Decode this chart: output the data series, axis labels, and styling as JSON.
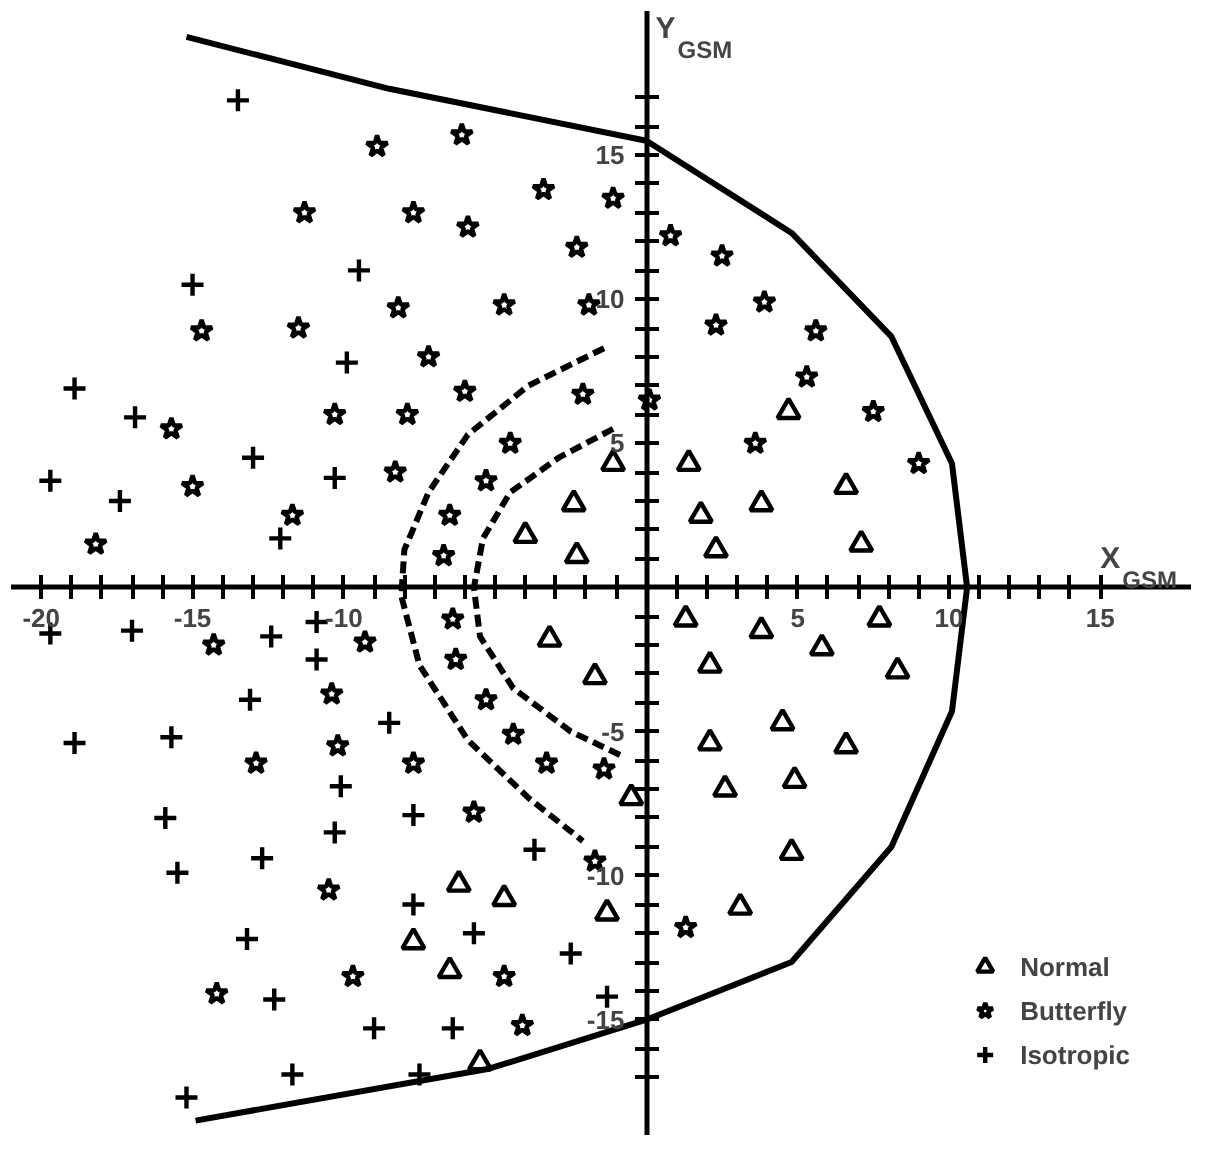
{
  "chart_data": {
    "type": "scatter",
    "xlabel": "X$_{GSM}$",
    "ylabel": "Y$_{GSM}$",
    "xlim": [
      -21,
      18
    ],
    "ylim": [
      -19,
      20
    ],
    "xticks": [
      {
        "value": -20,
        "label": "-20"
      },
      {
        "value": -19,
        "label": null
      },
      {
        "value": -18,
        "label": null
      },
      {
        "value": -17,
        "label": null
      },
      {
        "value": -16,
        "label": null
      },
      {
        "value": -15,
        "label": "-15"
      },
      {
        "value": -14,
        "label": null
      },
      {
        "value": -13,
        "label": null
      },
      {
        "value": -12,
        "label": null
      },
      {
        "value": -11,
        "label": null
      },
      {
        "value": -10,
        "label": "-10"
      },
      {
        "value": -9,
        "label": null
      },
      {
        "value": -8,
        "label": null
      },
      {
        "value": -7,
        "label": null
      },
      {
        "value": -6,
        "label": null
      },
      {
        "value": -5,
        "label": null
      },
      {
        "value": -4,
        "label": null
      },
      {
        "value": -3,
        "label": null
      },
      {
        "value": -2,
        "label": null
      },
      {
        "value": -1,
        "label": null
      },
      {
        "value": 1,
        "label": null
      },
      {
        "value": 2,
        "label": null
      },
      {
        "value": 3,
        "label": null
      },
      {
        "value": 4,
        "label": null
      },
      {
        "value": 5,
        "label": "5"
      },
      {
        "value": 6,
        "label": null
      },
      {
        "value": 7,
        "label": null
      },
      {
        "value": 8,
        "label": null
      },
      {
        "value": 9,
        "label": null
      },
      {
        "value": 10,
        "label": "10"
      },
      {
        "value": 11,
        "label": null
      },
      {
        "value": 12,
        "label": null
      },
      {
        "value": 13,
        "label": null
      },
      {
        "value": 14,
        "label": null
      },
      {
        "value": 15,
        "label": "15"
      }
    ],
    "yticks": [
      {
        "value": -17,
        "label": null
      },
      {
        "value": -16,
        "label": null
      },
      {
        "value": -15,
        "label": "-15"
      },
      {
        "value": -14,
        "label": null
      },
      {
        "value": -13,
        "label": null
      },
      {
        "value": -12,
        "label": null
      },
      {
        "value": -11,
        "label": null
      },
      {
        "value": -10,
        "label": "-10"
      },
      {
        "value": -9,
        "label": null
      },
      {
        "value": -8,
        "label": null
      },
      {
        "value": -7,
        "label": null
      },
      {
        "value": -6,
        "label": null
      },
      {
        "value": -5,
        "label": "-5"
      },
      {
        "value": -4,
        "label": null
      },
      {
        "value": -3,
        "label": null
      },
      {
        "value": -2,
        "label": null
      },
      {
        "value": -1,
        "label": null
      },
      {
        "value": 1,
        "label": null
      },
      {
        "value": 2,
        "label": null
      },
      {
        "value": 3,
        "label": null
      },
      {
        "value": 4,
        "label": null
      },
      {
        "value": 5,
        "label": "5"
      },
      {
        "value": 6,
        "label": null
      },
      {
        "value": 7,
        "label": null
      },
      {
        "value": 8,
        "label": null
      },
      {
        "value": 9,
        "label": null
      },
      {
        "value": 10,
        "label": "10"
      },
      {
        "value": 11,
        "label": null
      },
      {
        "value": 12,
        "label": null
      },
      {
        "value": 13,
        "label": null
      },
      {
        "value": 14,
        "label": null
      },
      {
        "value": 15,
        "label": "15"
      },
      {
        "value": 16,
        "label": null
      },
      {
        "value": 17,
        "label": null
      }
    ],
    "grid": false,
    "legend": "bottom right",
    "series": [
      {
        "name": "Normal",
        "marker": "triangle",
        "color": "#000000",
        "x": [
          -1.1,
          -2.4,
          -4.0,
          -2.3,
          4.7,
          1.4,
          1.8,
          3.8,
          6.6,
          2.3,
          7.1,
          -3.2,
          -1.7,
          -0.5,
          -6.2,
          -4.7,
          -1.3,
          -7.7,
          -6.5,
          -5.5,
          1.3,
          3.8,
          2.1,
          5.8,
          7.7,
          8.3,
          4.5,
          2.1,
          6.6,
          2.6,
          4.9,
          4.8,
          3.1
        ],
        "values": [
          4.3,
          2.9,
          1.8,
          1.1,
          6.1,
          4.3,
          2.5,
          2.9,
          3.5,
          1.3,
          1.5,
          -1.8,
          -3.1,
          -7.3,
          -10.3,
          -10.8,
          -11.3,
          -12.3,
          -13.3,
          -16.5,
          -1.1,
          -1.5,
          -2.7,
          -2.1,
          -1.1,
          -2.9,
          -4.7,
          -5.4,
          -5.5,
          -7.0,
          -6.7,
          -9.2,
          -11.1
        ]
      },
      {
        "name": "Butterfly",
        "marker": "star",
        "color": "#000000",
        "x": [
          -8.9,
          -6.1,
          -11.3,
          -7.7,
          -5.9,
          -3.4,
          -1.1,
          -2.3,
          -14.7,
          -11.5,
          -8.2,
          -4.7,
          -1.9,
          -7.2,
          -6.0,
          -10.3,
          -7.9,
          -2.1,
          0.1,
          -15.7,
          -4.5,
          -8.3,
          -15.0,
          -5.3,
          -11.7,
          -6.5,
          -18.2,
          -6.7,
          0.8,
          2.5,
          2.3,
          3.9,
          5.6,
          5.3,
          7.5,
          3.6,
          9.0,
          -14.3,
          -9.3,
          -6.4,
          -6.3,
          -10.4,
          -5.3,
          -12.9,
          -10.2,
          -7.7,
          -4.4,
          -3.3,
          -1.4,
          -5.7,
          -1.7,
          -10.5,
          -9.7,
          -4.7,
          -14.2,
          -4.1,
          1.3
        ],
        "values": [
          15.3,
          15.7,
          13.0,
          13.0,
          12.5,
          13.8,
          13.5,
          11.8,
          8.9,
          9.0,
          9.7,
          9.8,
          9.8,
          8.0,
          6.8,
          6.0,
          6.0,
          6.7,
          6.5,
          5.5,
          5.0,
          4.0,
          3.5,
          3.7,
          2.5,
          2.5,
          1.5,
          1.1,
          12.2,
          11.5,
          9.1,
          9.9,
          8.9,
          7.3,
          6.1,
          5.0,
          4.3,
          -2.0,
          -1.9,
          -1.1,
          -2.5,
          -3.7,
          -3.9,
          -6.1,
          -5.5,
          -6.1,
          -5.1,
          -6.1,
          -6.3,
          -7.8,
          -9.5,
          -10.5,
          -13.5,
          -13.5,
          -14.1,
          -15.2,
          -11.8
        ]
      },
      {
        "name": "Isotropic",
        "marker": "cross",
        "color": "#000000",
        "x": [
          -13.5,
          -15.0,
          -9.5,
          -18.9,
          -9.9,
          -16.9,
          -13.0,
          -19.7,
          -17.4,
          -10.3,
          -12.1,
          -19.7,
          -17.0,
          -10.9,
          -12.4,
          -10.9,
          -13.1,
          -8.5,
          -18.9,
          -15.7,
          -10.1,
          -15.9,
          -10.3,
          -7.7,
          -15.5,
          -12.7,
          -3.7,
          -7.7,
          -13.2,
          -5.7,
          -2.5,
          -12.3,
          -1.3,
          -9.0,
          -6.4,
          -11.7,
          -7.5,
          -15.2
        ],
        "values": [
          16.9,
          10.5,
          11.0,
          6.9,
          7.8,
          5.9,
          4.5,
          3.7,
          3.0,
          3.8,
          1.7,
          -1.6,
          -1.5,
          -1.2,
          -1.7,
          -2.5,
          -3.9,
          -4.7,
          -5.4,
          -5.2,
          -6.9,
          -8.0,
          -8.5,
          -7.9,
          -9.9,
          -9.4,
          -9.1,
          -11.0,
          -12.2,
          -12.0,
          -12.7,
          -14.3,
          -14.2,
          -15.3,
          -15.3,
          -16.9,
          -16.9,
          -17.7
        ]
      },
      {
        "type": "line",
        "line_style": "solid",
        "color": "#000000",
        "x": [
          -15.2,
          -8.5,
          0,
          4.8,
          8.1,
          10.1,
          10.6,
          10.1,
          8.1,
          4.8,
          0,
          -5.2,
          -14.9
        ],
        "values": [
          19.1,
          17.3,
          15.5,
          12.3,
          8.7,
          4.3,
          0,
          -4.3,
          -9,
          -13,
          -15,
          -16.7,
          -18.5
        ]
      },
      {
        "type": "line",
        "line_style": "dashed",
        "color": "#000000",
        "x": [
          -1.4,
          -3.9,
          -5.9,
          -7.2,
          -8.0,
          -8.1,
          -7.5,
          -5.9,
          -3.9,
          -2.1
        ],
        "values": [
          8.3,
          7.0,
          5.3,
          3.3,
          1.3,
          -0.3,
          -2.7,
          -5.3,
          -7.3,
          -8.8
        ]
      },
      {
        "type": "line",
        "line_style": "dashed",
        "color": "#000000",
        "x": [
          -1.1,
          -2.9,
          -4.5,
          -5.4,
          -5.7,
          -5.5,
          -4.4,
          -2.5,
          -0.7
        ],
        "values": [
          5.5,
          4.5,
          3.3,
          1.7,
          0,
          -1.7,
          -3.5,
          -5.0,
          -5.9
        ]
      }
    ]
  }
}
